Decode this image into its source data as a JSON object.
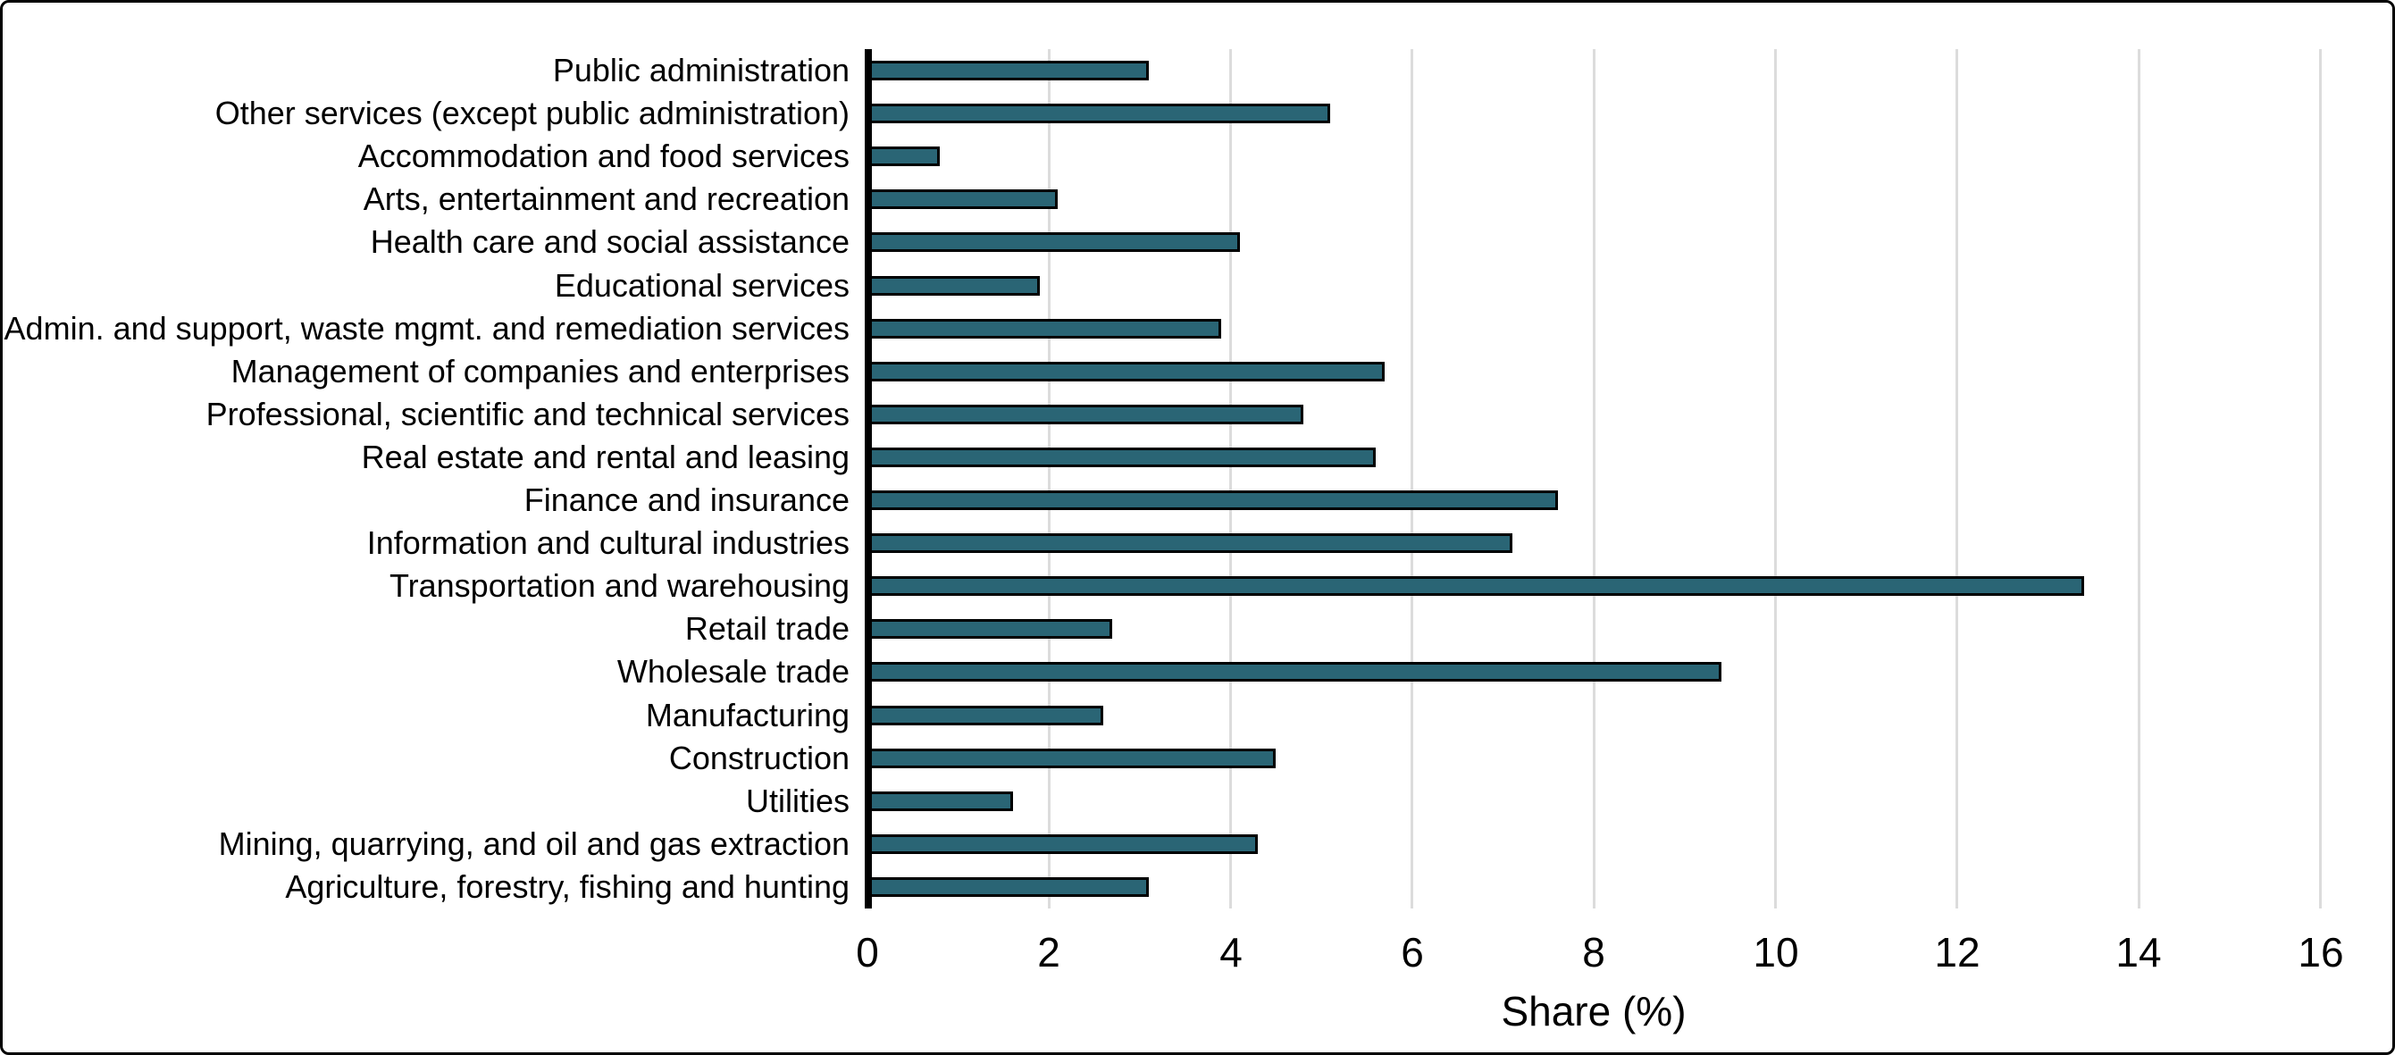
{
  "colors": {
    "bar_fill": "#2a6575",
    "bar_outline": "#000000",
    "gridline": "#dcdcdc",
    "axis_line": "#000000",
    "background": "#ffffff",
    "figure_border": "#000000",
    "text": "#000000"
  },
  "chart_data": {
    "type": "bar",
    "orientation": "horizontal",
    "xlabel": "Share (%)",
    "categories": [
      "Public administration",
      "Other services (except public administration)",
      "Accommodation and food services",
      "Arts, entertainment and recreation",
      "Health care and social assistance",
      "Educational services",
      "Admin. and support, waste mgmt. and remediation services",
      "Management of companies and enterprises",
      "Professional, scientific and technical services",
      "Real estate and rental and leasing",
      "Finance and insurance",
      "Information and cultural industries",
      "Transportation and warehousing",
      "Retail trade",
      "Wholesale trade",
      "Manufacturing",
      "Construction",
      "Utilities",
      "Mining, quarrying, and oil and gas extraction",
      "Agriculture, forestry, fishing and hunting"
    ],
    "values": [
      3.1,
      5.1,
      0.8,
      2.1,
      4.1,
      1.9,
      3.9,
      5.7,
      4.8,
      5.6,
      7.6,
      7.1,
      13.4,
      2.7,
      9.4,
      2.6,
      4.5,
      1.6,
      4.3,
      3.1
    ],
    "xticks": [
      0,
      2,
      4,
      6,
      8,
      10,
      12,
      14,
      16
    ],
    "xlim": [
      0,
      16.4
    ],
    "grid": true,
    "legend": false
  }
}
